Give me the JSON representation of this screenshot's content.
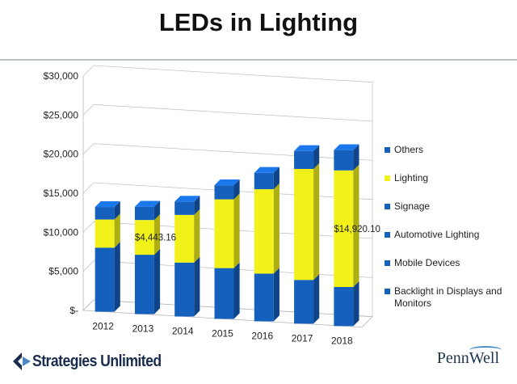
{
  "title": "LEDs in Lighting",
  "chart_data": {
    "type": "bar",
    "stacked": true,
    "three_d": true,
    "categories": [
      "2012",
      "2013",
      "2014",
      "2015",
      "2016",
      "2017",
      "2018"
    ],
    "y_ticks": [
      "$30,000",
      "$25,000",
      "$20,000",
      "$15,000",
      "$10,000",
      "$5,000",
      "$-"
    ],
    "ylim": [
      0,
      30000
    ],
    "grid": true,
    "legend_position": "right",
    "series": [
      {
        "name": "Backlight in Displays and Monitors",
        "color": "#1560bd",
        "values": [
          8200,
          7600,
          6900,
          6500,
          6100,
          5600,
          5000
        ]
      },
      {
        "name": "Mobile Devices",
        "color": "#1560bd",
        "values": [
          0,
          0,
          0,
          0,
          0,
          0,
          0
        ]
      },
      {
        "name": "Automotive Lighting",
        "color": "#1560bd",
        "values": [
          0,
          0,
          0,
          0,
          0,
          0,
          0
        ]
      },
      {
        "name": "Signage",
        "color": "#1560bd",
        "values": [
          0,
          0,
          0,
          0,
          0,
          0,
          0
        ]
      },
      {
        "name": "Lighting",
        "color": "#f2f21a",
        "values": [
          3600,
          4443.16,
          6100,
          8800,
          10800,
          14200,
          14920.1
        ]
      },
      {
        "name": "Others",
        "color": "#1560bd",
        "values": [
          1600,
          1700,
          1700,
          1800,
          2100,
          2300,
          2600
        ]
      }
    ],
    "annotations": [
      {
        "text": "$4,443.16",
        "category": "2013"
      },
      {
        "text": "$14,920.10",
        "category": "2018"
      }
    ]
  },
  "legend": [
    {
      "label": "Others",
      "color": "#1560bd"
    },
    {
      "label": "Lighting",
      "color": "#f2f21a"
    },
    {
      "label": "Signage",
      "color": "#1560bd"
    },
    {
      "label": "Automotive Lighting",
      "color": "#1560bd"
    },
    {
      "label": "Mobile Devices",
      "color": "#1560bd"
    },
    {
      "label": "Backlight in Displays and Monitors",
      "color": "#1560bd"
    }
  ],
  "footer": {
    "left_logo": "Strategies Unlimited",
    "right_logo": "PennWell"
  }
}
